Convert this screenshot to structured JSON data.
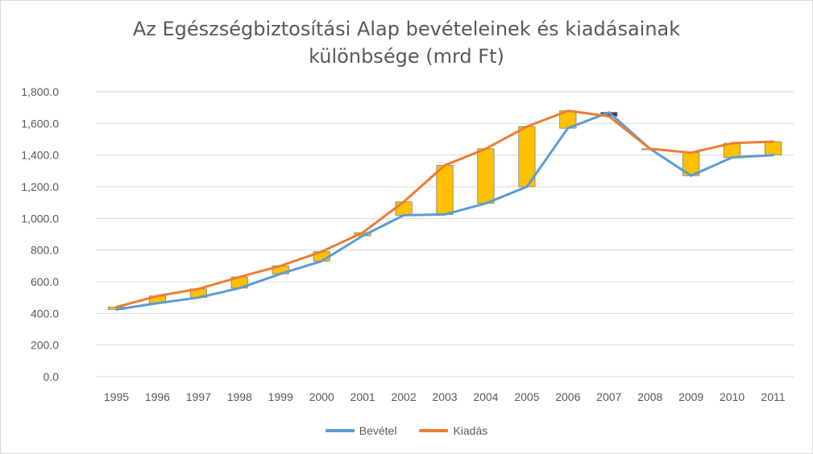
{
  "chart_data": {
    "type": "line",
    "title_lines": [
      "Az Egészségbiztosítási Alap bevételeinek és kiadásainak",
      "különbsége (mrd Ft)"
    ],
    "categories": [
      "1995",
      "1996",
      "1997",
      "1998",
      "1999",
      "2000",
      "2001",
      "2002",
      "2003",
      "2004",
      "2005",
      "2006",
      "2007",
      "2008",
      "2009",
      "2010",
      "2011"
    ],
    "series": [
      {
        "name": "Bevétel",
        "color": "#5B9BD5",
        "values": [
          425,
          465,
          500,
          560,
          650,
          730,
          890,
          1020,
          1025,
          1095,
          1200,
          1570,
          1670,
          1440,
          1270,
          1385,
          1400
        ]
      },
      {
        "name": "Kiadás",
        "color": "#ED7D31",
        "values": [
          440,
          510,
          555,
          630,
          700,
          790,
          910,
          1105,
          1335,
          1440,
          1580,
          1680,
          1645,
          1440,
          1415,
          1475,
          1485
        ]
      }
    ],
    "difference_bars": {
      "up_color": "#FFC000",
      "down_color": "#404040",
      "border_color": "#7F7F7F"
    },
    "yticks": [
      "0.0",
      "200.0",
      "400.0",
      "600.0",
      "800.0",
      "1,000.0",
      "1,200.0",
      "1,400.0",
      "1,600.0",
      "1,800.0"
    ],
    "ylim": [
      0,
      1800
    ],
    "grid": true,
    "legend_position": "bottom"
  }
}
